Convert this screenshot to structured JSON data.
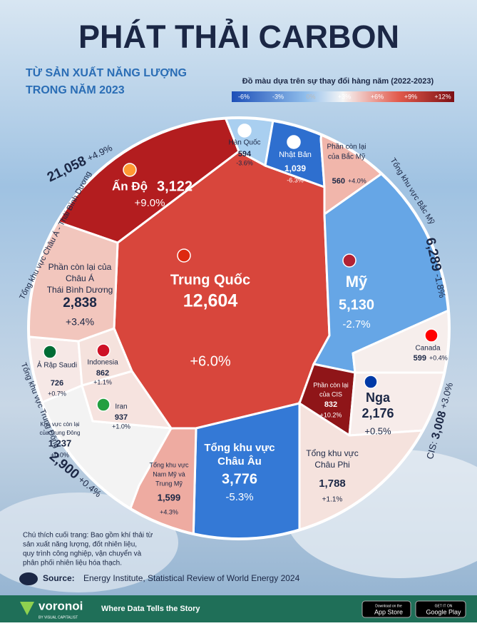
{
  "header": {
    "title": "PHÁT THẢI CARBON",
    "subtitle": [
      "TỪ SẢN XUẤT NĂNG LƯỢNG",
      "TRONG NĂM 2023"
    ]
  },
  "legend": {
    "title": "Đồ màu dựa trên sự thay đổi hàng năm (2022-2023)",
    "labels": [
      "-6%",
      "-3%",
      "0%",
      "+3%",
      "+6%",
      "+9%",
      "+12%"
    ]
  },
  "cells": [
    {
      "name": [
        "Trung Quốc"
      ],
      "value": "12,604",
      "change": "+6.0%",
      "color": "#d8463c"
    },
    {
      "name": [
        "Ấn Độ"
      ],
      "value": "3,122",
      "change": "+9.0%",
      "color": "#b31d1f"
    },
    {
      "name": [
        "Hàn Quốc"
      ],
      "value": "594",
      "change": "-3.6%",
      "color": "#a9cff0"
    },
    {
      "name": [
        "Nhật Bản"
      ],
      "value": "1,039",
      "change": "-6.3%",
      "color": "#2e6fcf"
    },
    {
      "name": [
        "Phần còn lại",
        "của Bắc Mỹ"
      ],
      "value": "560",
      "change": "+4.0%",
      "color": "#f1b6ab"
    },
    {
      "name": [
        "Mỹ"
      ],
      "value": "5,130",
      "change": "-2.7%",
      "color": "#66a6e6"
    },
    {
      "name": [
        "Canada"
      ],
      "value": "599",
      "change": "+0.4%",
      "color": "#f6eeec"
    },
    {
      "name": [
        "Phần còn lại",
        "của CIS"
      ],
      "value": "832",
      "change": "+10.2%",
      "color": "#8f1518"
    },
    {
      "name": [
        "Nga"
      ],
      "value": "2,176",
      "change": "+0.5%",
      "color": "#f7ecea"
    },
    {
      "name": [
        "Tổng khu vực",
        "Châu Phi"
      ],
      "value": "1,788",
      "change": "+1.1%",
      "color": "#f5e2dd"
    },
    {
      "name": [
        "Tổng khu vực",
        "Châu Âu"
      ],
      "value": "3,776",
      "change": "-5.3%",
      "color": "#3479d6"
    },
    {
      "name": [
        "Tổng khu vực",
        "Nam Mỹ và",
        "Trung Mỹ"
      ],
      "value": "1,599",
      "change": "+4.3%",
      "color": "#eeaba1"
    },
    {
      "name": [
        "Khu vực còn lại",
        "của Trung Đông"
      ],
      "value": "1,237",
      "change": "+0.0%",
      "color": "#f3f3f3"
    },
    {
      "name": [
        "Iran"
      ],
      "value": "937",
      "change": "+1.0%",
      "color": "#f6e3df"
    },
    {
      "name": [
        "Ả Rập Saudi"
      ],
      "value": "726",
      "change": "+0.7%",
      "color": "#f6e8e6"
    },
    {
      "name": [
        "Indonesia"
      ],
      "value": "862",
      "change": "+1.1%",
      "color": "#f5e2dd"
    },
    {
      "name": [
        "Phần còn lại của",
        "Châu Á",
        "Thái Bình Dương"
      ],
      "value": "2,838",
      "change": "+3.4%",
      "color": "#f2c6bd"
    }
  ],
  "regions": [
    {
      "name": "Tổng khu vực Châu Á - Thái Bình Dương",
      "value": "21,058",
      "change": "+4.9%"
    },
    {
      "name": "Tổng khu vực Bắc Mỹ",
      "value": "6,289",
      "change": "-1.8%"
    },
    {
      "name": "CIS:",
      "value": "3,008",
      "change": "+3.0%"
    },
    {
      "name": "Tổng khu vực Trung Đông",
      "value": "2,900",
      "change": "+0.4%"
    }
  ],
  "footnote": [
    "Chú thích cuối trang: Bao gồm khí thải từ",
    "sản xuất năng lượng, đốt nhiên liệu,",
    "quy trình công nghiệp, vận chuyển và",
    "phân phối nhiên liệu hóa thạch."
  ],
  "source": {
    "label": "Source:",
    "text": "Energy Institute, Statistical Review of World Energy 2024"
  },
  "footer": {
    "brand": "voronoi",
    "by": "BY VISUAL CAPITALIST",
    "tagline": "Where Data Tells the Story",
    "apple": [
      "Download on the",
      "App Store"
    ],
    "google": [
      "GET IT ON",
      "Google Play"
    ]
  }
}
